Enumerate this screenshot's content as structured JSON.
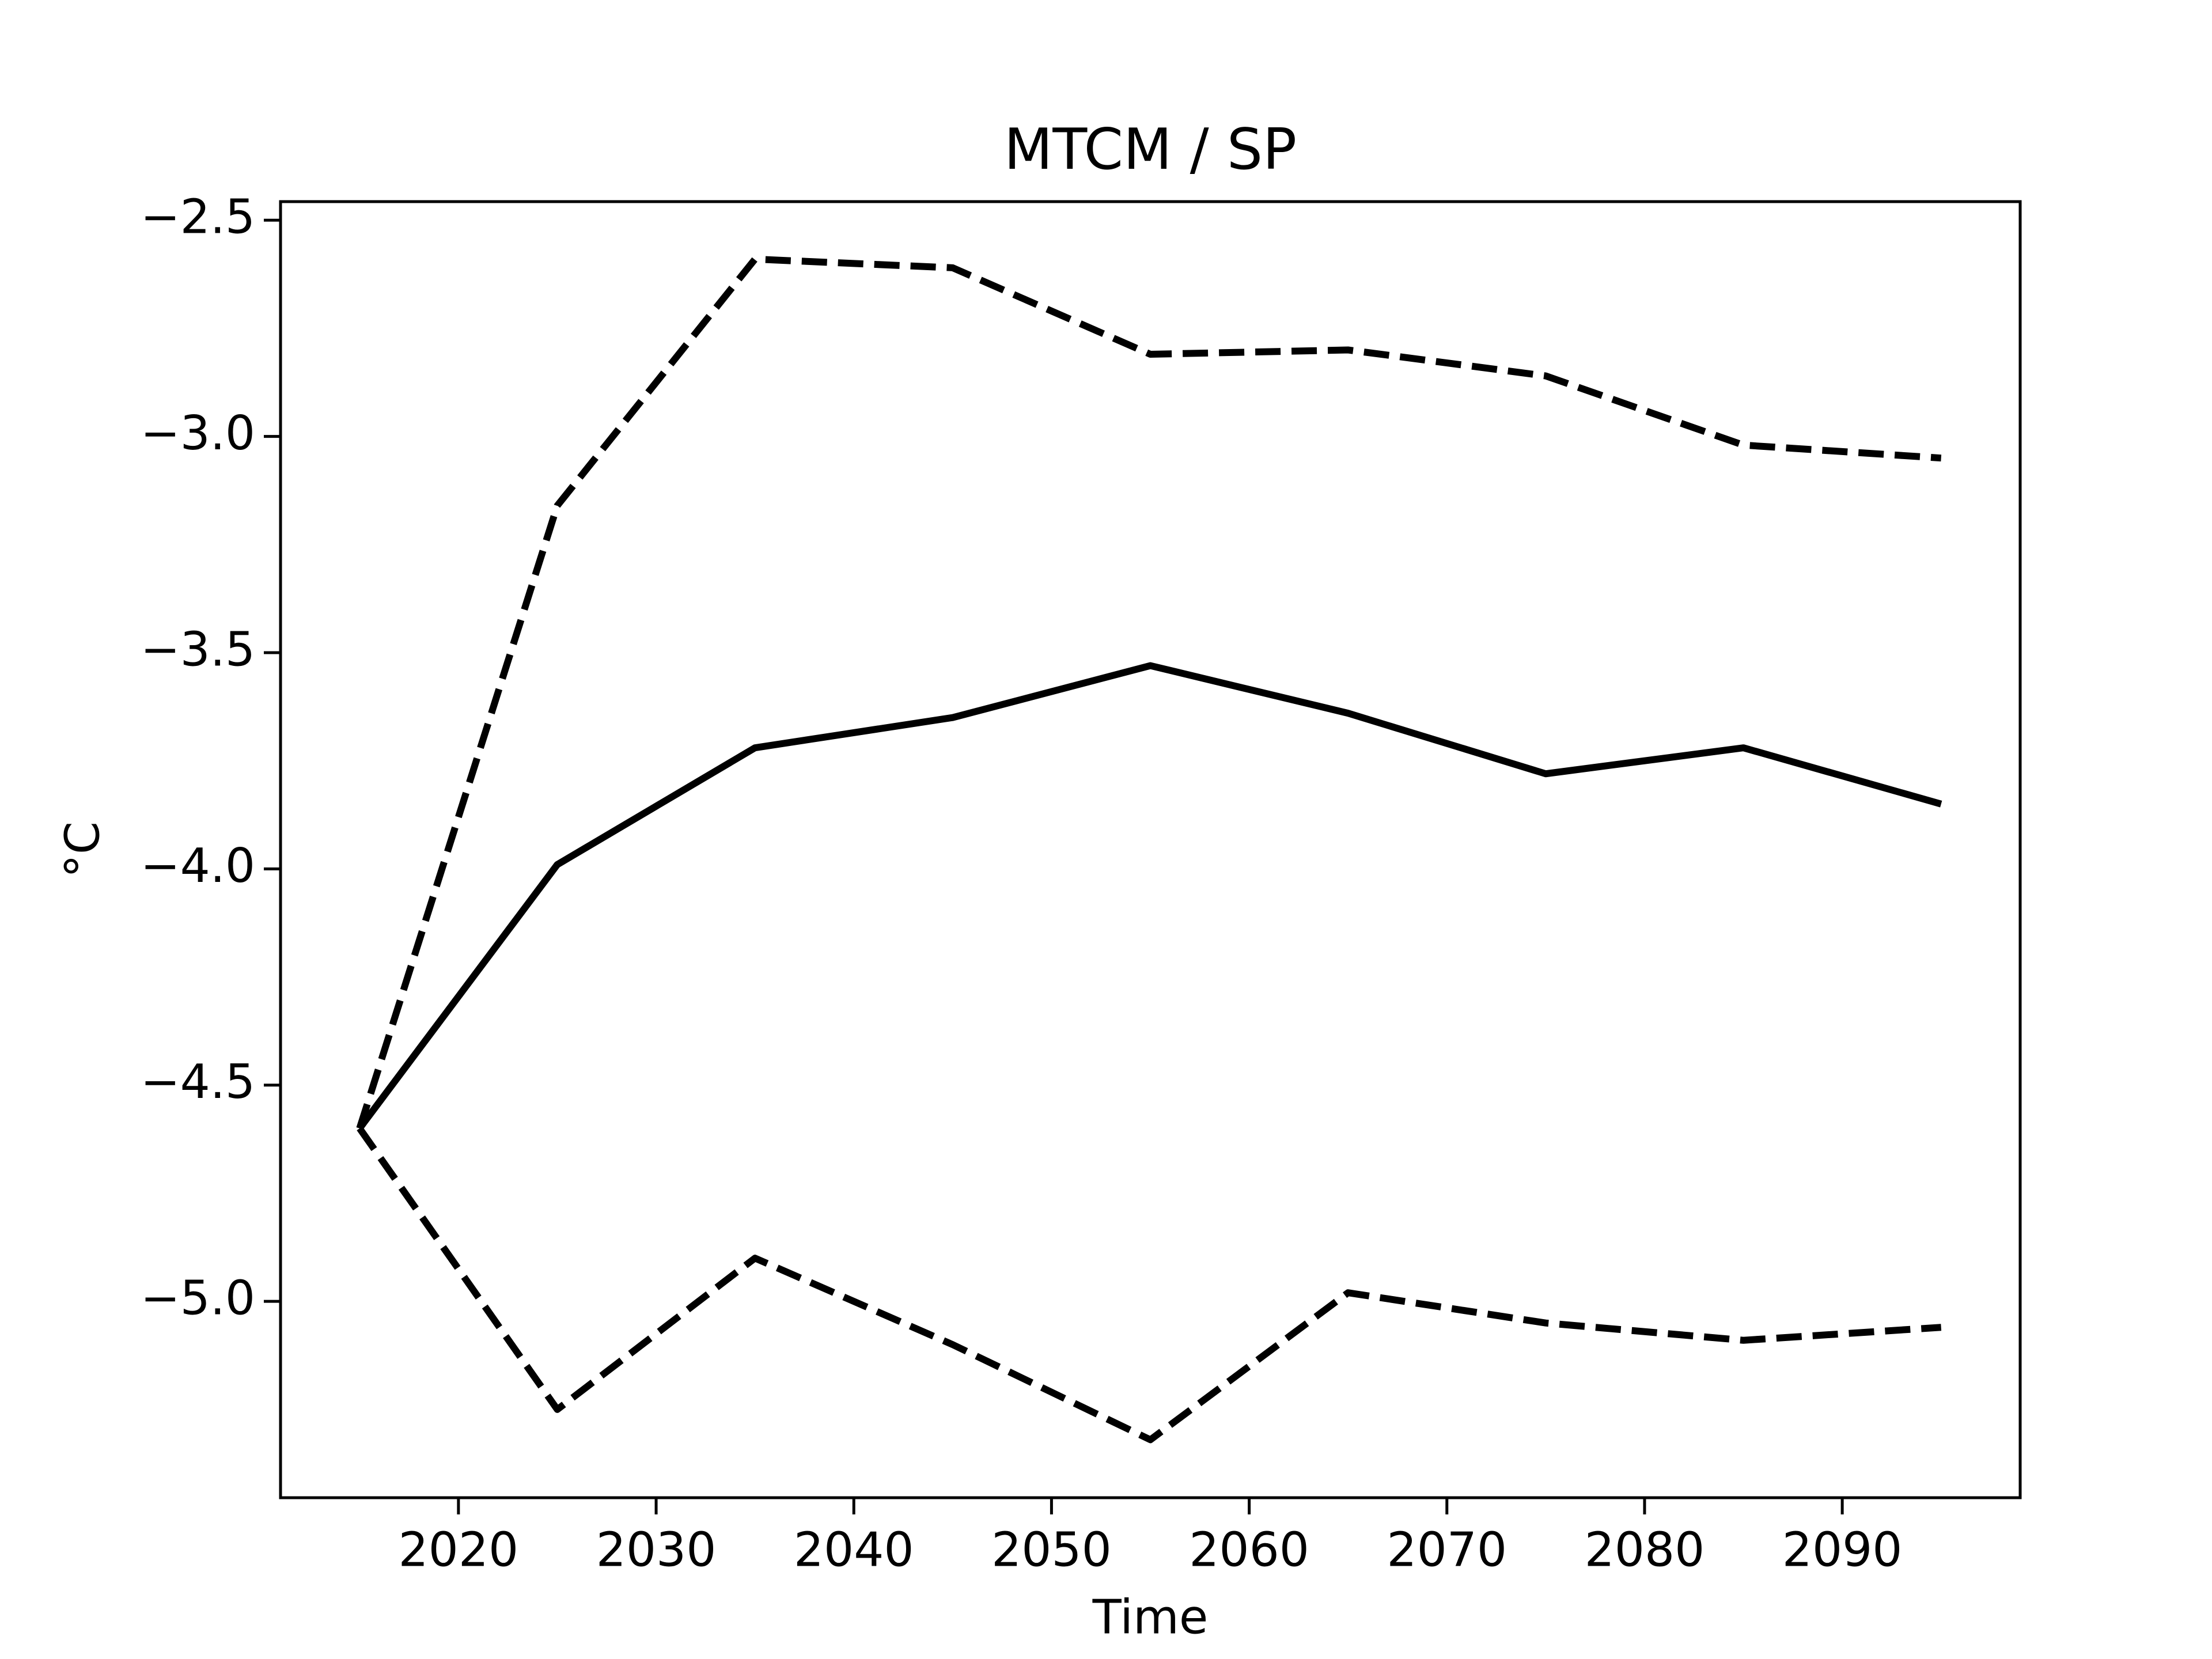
{
  "chart_data": {
    "type": "line",
    "title": "MTCM / SP",
    "xlabel": "Time",
    "ylabel": "°C",
    "x": [
      2015,
      2025,
      2035,
      2045,
      2055,
      2065,
      2075,
      2085,
      2095
    ],
    "series": [
      {
        "color": "#000000",
        "style": "solid",
        "values": [
          -4.6,
          -3.99,
          -3.72,
          -3.65,
          -3.53,
          -3.64,
          -3.78,
          -3.72,
          -3.85
        ]
      },
      {
        "color": "#000000",
        "style": "dashed",
        "values": [
          -4.6,
          -3.16,
          -2.59,
          -2.61,
          -2.81,
          -2.8,
          -2.86,
          -3.02,
          -3.05
        ]
      },
      {
        "color": "#000000",
        "style": "dashed",
        "values": [
          -4.6,
          -5.25,
          -4.9,
          -5.1,
          -5.32,
          -4.98,
          -5.05,
          -5.09,
          -5.06
        ]
      }
    ],
    "xlim": [
      2011,
      2099
    ],
    "ylim": [
      -5.454,
      -2.457
    ],
    "xticks": [
      2020,
      2030,
      2040,
      2050,
      2060,
      2070,
      2080,
      2090
    ],
    "yticks": [
      {
        "value": -2.5,
        "label": "−2.5"
      },
      {
        "value": -3.0,
        "label": "−3.0"
      },
      {
        "value": -3.5,
        "label": "−3.5"
      },
      {
        "value": -4.0,
        "label": "−4.0"
      },
      {
        "value": -4.5,
        "label": "−4.5"
      },
      {
        "value": -5.0,
        "label": "−5.0"
      }
    ],
    "grid": false
  }
}
